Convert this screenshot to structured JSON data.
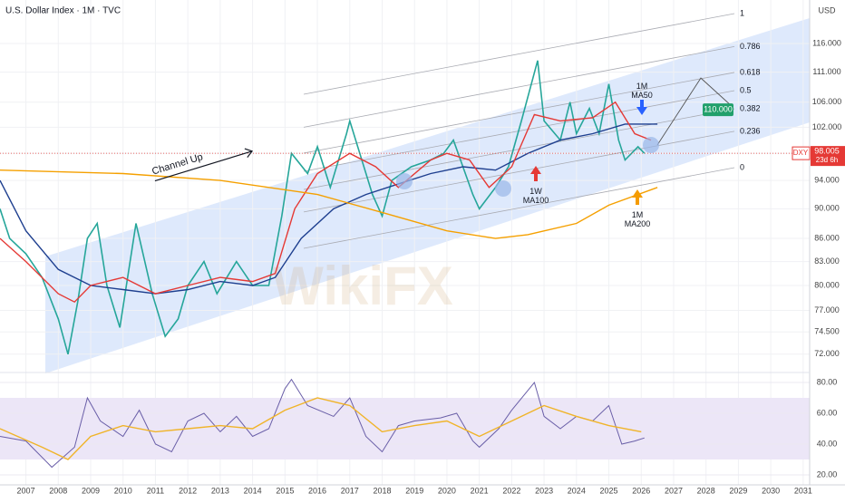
{
  "header": {
    "title": "U.S. Dollar Index · 1M · TVC",
    "currency": "USD",
    "watermark": "WikiFX"
  },
  "chart_data": [
    {
      "type": "line",
      "log_scale": true,
      "xlim": [
        2006.2,
        2031.2
      ],
      "xticks": [
        2007,
        2008,
        2009,
        2010,
        2011,
        2012,
        2013,
        2014,
        2015,
        2016,
        2017,
        2018,
        2019,
        2020,
        2021,
        2022,
        2023,
        2024,
        2025,
        2026,
        2027,
        2028,
        2029,
        2030,
        2031
      ],
      "ylim": [
        70.1,
        124
      ],
      "yticks": [
        {
          "value": 72,
          "label": "72.000"
        },
        {
          "value": 74.5,
          "label": "74.500"
        },
        {
          "value": 77,
          "label": "77.000"
        },
        {
          "value": 80,
          "label": "80.000"
        },
        {
          "value": 83,
          "label": "83.000"
        },
        {
          "value": 86,
          "label": "86.000"
        },
        {
          "value": 90,
          "label": "90.000"
        },
        {
          "value": 94,
          "label": "94.000"
        },
        {
          "value": 98,
          "label": "98.000"
        },
        {
          "value": 102,
          "label": "102.000"
        },
        {
          "value": 106,
          "label": "106.000"
        },
        {
          "value": 111,
          "label": "111.000"
        },
        {
          "value": 116,
          "label": "116.000"
        }
      ],
      "series": [
        {
          "name": "DXY",
          "color": "#26a69a",
          "x": [
            2006.2,
            2006.5,
            2007,
            2007.5,
            2008,
            2008.3,
            2008.6,
            2008.9,
            2009.2,
            2009.5,
            2009.9,
            2010.4,
            2010.9,
            2011.3,
            2011.7,
            2012,
            2012.5,
            2012.9,
            2013.5,
            2014,
            2014.5,
            2014.9,
            2015.2,
            2015.7,
            2016,
            2016.4,
            2016.9,
            2017,
            2017.7,
            2018,
            2018.3,
            2018.9,
            2019.5,
            2019.9,
            2020.2,
            2020.8,
            2021,
            2021.5,
            2021.9,
            2022.3,
            2022.8,
            2023,
            2023.5,
            2023.8,
            2024,
            2024.4,
            2024.7,
            2025,
            2025.3,
            2025.5,
            2025.9,
            2026.1
          ],
          "values": [
            90,
            86,
            84,
            81,
            76,
            72,
            78,
            86,
            88,
            80,
            75,
            88,
            79,
            74,
            76,
            80,
            83,
            79,
            83,
            80,
            80,
            89,
            98,
            95,
            99,
            93,
            101,
            103,
            92,
            89,
            94,
            96,
            97,
            98,
            100,
            92,
            90,
            93,
            96,
            103,
            113,
            103,
            100,
            106,
            101,
            105,
            101,
            109,
            100,
            97,
            99,
            98
          ]
        },
        {
          "name": "1M MA50",
          "color": "#1e3f8f",
          "x": [
            2006.2,
            2007,
            2008,
            2009,
            2010,
            2011,
            2012,
            2013,
            2014,
            2014.7,
            2015.5,
            2016.5,
            2017.5,
            2018.5,
            2019.5,
            2020.5,
            2021.5,
            2022.5,
            2023.5,
            2024.5,
            2025.5,
            2026.5
          ],
          "values": [
            94,
            87,
            82,
            80,
            79.5,
            79,
            79.5,
            80.5,
            80,
            81,
            86,
            90,
            92,
            93.5,
            95,
            96,
            95.5,
            98,
            100,
            101,
            102.5,
            102.5
          ]
        },
        {
          "name": "1W MA100",
          "color": "#e53935",
          "x": [
            2006.2,
            2007,
            2008,
            2008.5,
            2009,
            2010,
            2011,
            2012,
            2013,
            2014,
            2014.7,
            2015.3,
            2016,
            2017,
            2017.8,
            2018.5,
            2019.5,
            2020,
            2020.7,
            2021.3,
            2022,
            2022.7,
            2023.5,
            2024.5,
            2025.2,
            2025.8,
            2026.3
          ],
          "values": [
            86,
            83,
            79,
            78,
            80,
            81,
            79,
            80,
            81,
            80.5,
            81.5,
            90,
            95,
            98,
            96,
            93,
            97,
            98,
            97,
            93,
            96,
            104,
            103,
            103.5,
            106,
            101,
            100
          ]
        },
        {
          "name": "1M MA200",
          "color": "#f5a000",
          "x": [
            2006.2,
            2010,
            2013,
            2016,
            2018,
            2020,
            2021.5,
            2022.5,
            2024,
            2025,
            2026.5
          ],
          "values": [
            95.5,
            95,
            94,
            92,
            89.5,
            87,
            86,
            86.5,
            88,
            90.5,
            93
          ]
        }
      ],
      "fib_levels": [
        1,
        0.786,
        0.618,
        0.5,
        0.382,
        0.236,
        0
      ],
      "annotation": "Channel Up",
      "target": {
        "value": 110,
        "label": "110.000"
      },
      "last_price": 98.005,
      "symbol": "DXY",
      "countdown": "23d 6h"
    },
    {
      "type": "line",
      "xlim": [
        2006.2,
        2031.2
      ],
      "ylim": [
        13.5,
        85.9
      ],
      "yticks": [
        {
          "value": 20,
          "label": "20.00"
        },
        {
          "value": 40,
          "label": "40.00"
        },
        {
          "value": 60,
          "label": "60.00"
        },
        {
          "value": 80,
          "label": "80.00"
        }
      ],
      "series": [
        {
          "color": "#6a5fa8",
          "x": [
            2006.2,
            2007,
            2007.8,
            2008.5,
            2008.9,
            2009.3,
            2010,
            2010.5,
            2011,
            2011.5,
            2012,
            2012.5,
            2013,
            2013.5,
            2014,
            2014.5,
            2015,
            2015.2,
            2015.7,
            2016.5,
            2017,
            2017.5,
            2018,
            2018.5,
            2019,
            2019.8,
            2020.3,
            2020.8,
            2021,
            2021.6,
            2022,
            2022.7,
            2023,
            2023.5,
            2024,
            2024.5,
            2025,
            2025.4,
            2025.8,
            2026.1
          ],
          "values": [
            45,
            42,
            25,
            38,
            70,
            55,
            45,
            62,
            40,
            35,
            55,
            60,
            48,
            58,
            45,
            50,
            76,
            82,
            65,
            58,
            70,
            45,
            35,
            52,
            55,
            57,
            60,
            42,
            38,
            50,
            62,
            80,
            58,
            50,
            58,
            55,
            65,
            40,
            42,
            44
          ]
        },
        {
          "color": "#f0b429",
          "x": [
            2006.2,
            2007.5,
            2008.3,
            2009,
            2010,
            2011,
            2012,
            2013,
            2014,
            2015,
            2016,
            2017,
            2018,
            2019,
            2020,
            2021,
            2022,
            2023,
            2024,
            2025,
            2026
          ],
          "values": [
            50,
            38,
            30,
            45,
            52,
            48,
            50,
            52,
            50,
            62,
            70,
            65,
            48,
            52,
            55,
            45,
            55,
            65,
            58,
            52,
            48
          ]
        }
      ]
    }
  ]
}
